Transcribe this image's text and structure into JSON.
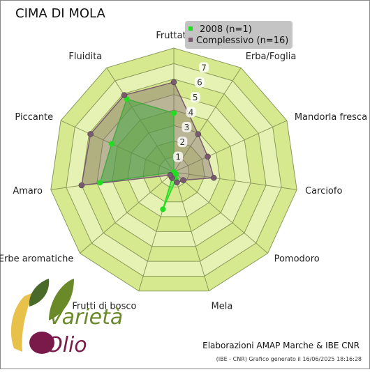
{
  "chart_data": {
    "type": "radar",
    "title": "CIMA DI MOLA",
    "categories": [
      "Fruttato",
      "Erba/Foglia",
      "Mandorla fresca",
      "Carciofo",
      "Pomodoro",
      "Mela",
      "Frutti di bosco",
      "Erbe aromatiche",
      "Amaro",
      "Piccante",
      "Fluidita"
    ],
    "series": [
      {
        "name": "2008 (n=1)",
        "color": "#22dd22",
        "values": [
          3.8,
          0,
          0,
          0,
          0.2,
          0.5,
          2.5,
          0,
          4.8,
          4.4,
          5.6
        ]
      },
      {
        "name": "Complessivo (n=16)",
        "color": "#7a5a6e",
        "values": [
          5.8,
          2.9,
          2.4,
          2.6,
          0.8,
          0.7,
          0.4,
          0.3,
          6.0,
          5.9,
          5.9
        ]
      }
    ],
    "ylim": [
      0,
      8
    ],
    "yticks": [
      1,
      2,
      3,
      4,
      5,
      6,
      7
    ],
    "grid": true,
    "legend": "top-right"
  },
  "footer": {
    "credit": "Elaborazioni AMAP Marche & IBE CNR",
    "generated": "(IBE - CNR) Grafico generato il 16/06/2025 18:16:28"
  },
  "logo": {
    "line1": "Varietà",
    "line2": "Olio"
  }
}
